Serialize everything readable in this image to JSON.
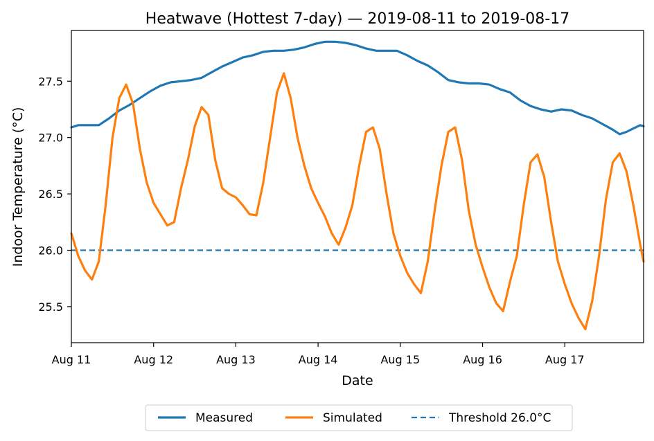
{
  "chart_data": {
    "type": "line",
    "title": "Heatwave (Hottest 7-day) — 2019-08-11 to 2019-08-17",
    "xlabel": "Date",
    "ylabel": "Indoor Temperature (°C)",
    "xlim": [
      "2019-08-11 00:00",
      "2019-08-17 23:00"
    ],
    "ylim": [
      25.18,
      27.95
    ],
    "x_ticks": [
      {
        "value": "2019-08-11",
        "label": "Aug 11"
      },
      {
        "value": "2019-08-12",
        "label": "Aug 12"
      },
      {
        "value": "2019-08-13",
        "label": "Aug 13"
      },
      {
        "value": "2019-08-14",
        "label": "Aug 14"
      },
      {
        "value": "2019-08-15",
        "label": "Aug 15"
      },
      {
        "value": "2019-08-16",
        "label": "Aug 16"
      },
      {
        "value": "2019-08-17",
        "label": "Aug 17"
      }
    ],
    "y_ticks": [
      {
        "value": 25.5,
        "label": "25.5"
      },
      {
        "value": 26.0,
        "label": "26.0"
      },
      {
        "value": 26.5,
        "label": "26.5"
      },
      {
        "value": 27.0,
        "label": "27.0"
      },
      {
        "value": 27.5,
        "label": "27.5"
      }
    ],
    "grid": false,
    "legend_position": "bottom-center",
    "series": [
      {
        "name": "Measured",
        "color": "#1f77b4",
        "style": "solid",
        "points": [
          [
            "2019-08-11 00:00",
            27.09
          ],
          [
            "2019-08-11 02:00",
            27.11
          ],
          [
            "2019-08-11 05:00",
            27.11
          ],
          [
            "2019-08-11 08:00",
            27.11
          ],
          [
            "2019-08-11 11:00",
            27.17
          ],
          [
            "2019-08-11 14:00",
            27.24
          ],
          [
            "2019-08-11 17:00",
            27.29
          ],
          [
            "2019-08-11 20:00",
            27.35
          ],
          [
            "2019-08-11 23:00",
            27.41
          ],
          [
            "2019-08-12 02:00",
            27.46
          ],
          [
            "2019-08-12 05:00",
            27.49
          ],
          [
            "2019-08-12 08:00",
            27.5
          ],
          [
            "2019-08-12 11:00",
            27.51
          ],
          [
            "2019-08-12 14:00",
            27.53
          ],
          [
            "2019-08-12 17:00",
            27.58
          ],
          [
            "2019-08-12 20:00",
            27.63
          ],
          [
            "2019-08-12 23:00",
            27.67
          ],
          [
            "2019-08-13 02:00",
            27.71
          ],
          [
            "2019-08-13 05:00",
            27.73
          ],
          [
            "2019-08-13 08:00",
            27.76
          ],
          [
            "2019-08-13 11:00",
            27.77
          ],
          [
            "2019-08-13 14:00",
            27.77
          ],
          [
            "2019-08-13 17:00",
            27.78
          ],
          [
            "2019-08-13 20:00",
            27.8
          ],
          [
            "2019-08-13 23:00",
            27.83
          ],
          [
            "2019-08-14 02:00",
            27.85
          ],
          [
            "2019-08-14 05:00",
            27.85
          ],
          [
            "2019-08-14 08:00",
            27.84
          ],
          [
            "2019-08-14 11:00",
            27.82
          ],
          [
            "2019-08-14 14:00",
            27.79
          ],
          [
            "2019-08-14 17:00",
            27.77
          ],
          [
            "2019-08-14 20:00",
            27.77
          ],
          [
            "2019-08-14 23:00",
            27.77
          ],
          [
            "2019-08-15 02:00",
            27.73
          ],
          [
            "2019-08-15 05:00",
            27.68
          ],
          [
            "2019-08-15 08:00",
            27.64
          ],
          [
            "2019-08-15 11:00",
            27.58
          ],
          [
            "2019-08-15 14:00",
            27.51
          ],
          [
            "2019-08-15 17:00",
            27.49
          ],
          [
            "2019-08-15 20:00",
            27.48
          ],
          [
            "2019-08-15 23:00",
            27.48
          ],
          [
            "2019-08-16 02:00",
            27.47
          ],
          [
            "2019-08-16 05:00",
            27.43
          ],
          [
            "2019-08-16 08:00",
            27.4
          ],
          [
            "2019-08-16 11:00",
            27.33
          ],
          [
            "2019-08-16 14:00",
            27.28
          ],
          [
            "2019-08-16 17:00",
            27.25
          ],
          [
            "2019-08-16 20:00",
            27.23
          ],
          [
            "2019-08-16 23:00",
            27.25
          ],
          [
            "2019-08-17 02:00",
            27.24
          ],
          [
            "2019-08-17 05:00",
            27.2
          ],
          [
            "2019-08-17 08:00",
            27.17
          ],
          [
            "2019-08-17 11:00",
            27.12
          ],
          [
            "2019-08-17 14:00",
            27.07
          ],
          [
            "2019-08-17 16:00",
            27.03
          ],
          [
            "2019-08-17 18:00",
            27.05
          ],
          [
            "2019-08-17 20:00",
            27.08
          ],
          [
            "2019-08-17 22:00",
            27.11
          ],
          [
            "2019-08-17 23:00",
            27.1
          ]
        ]
      },
      {
        "name": "Simulated",
        "color": "#ff7f0e",
        "style": "solid",
        "points": [
          [
            "2019-08-11 00:00",
            26.15
          ],
          [
            "2019-08-11 02:00",
            25.95
          ],
          [
            "2019-08-11 04:00",
            25.82
          ],
          [
            "2019-08-11 06:00",
            25.74
          ],
          [
            "2019-08-11 08:00",
            25.9
          ],
          [
            "2019-08-11 10:00",
            26.4
          ],
          [
            "2019-08-11 12:00",
            27.0
          ],
          [
            "2019-08-11 14:00",
            27.35
          ],
          [
            "2019-08-11 16:00",
            27.47
          ],
          [
            "2019-08-11 18:00",
            27.3
          ],
          [
            "2019-08-11 20:00",
            26.9
          ],
          [
            "2019-08-11 22:00",
            26.6
          ],
          [
            "2019-08-12 00:00",
            26.42
          ],
          [
            "2019-08-12 02:00",
            26.32
          ],
          [
            "2019-08-12 04:00",
            26.22
          ],
          [
            "2019-08-12 06:00",
            26.25
          ],
          [
            "2019-08-12 08:00",
            26.55
          ],
          [
            "2019-08-12 10:00",
            26.8
          ],
          [
            "2019-08-12 12:00",
            27.1
          ],
          [
            "2019-08-12 14:00",
            27.27
          ],
          [
            "2019-08-12 16:00",
            27.2
          ],
          [
            "2019-08-12 18:00",
            26.8
          ],
          [
            "2019-08-12 20:00",
            26.55
          ],
          [
            "2019-08-12 22:00",
            26.5
          ],
          [
            "2019-08-13 00:00",
            26.47
          ],
          [
            "2019-08-13 02:00",
            26.4
          ],
          [
            "2019-08-13 04:00",
            26.32
          ],
          [
            "2019-08-13 06:00",
            26.31
          ],
          [
            "2019-08-13 08:00",
            26.6
          ],
          [
            "2019-08-13 10:00",
            27.0
          ],
          [
            "2019-08-13 12:00",
            27.4
          ],
          [
            "2019-08-13 14:00",
            27.57
          ],
          [
            "2019-08-13 16:00",
            27.35
          ],
          [
            "2019-08-13 18:00",
            27.0
          ],
          [
            "2019-08-13 20:00",
            26.75
          ],
          [
            "2019-08-13 22:00",
            26.55
          ],
          [
            "2019-08-14 00:00",
            26.42
          ],
          [
            "2019-08-14 02:00",
            26.3
          ],
          [
            "2019-08-14 04:00",
            26.15
          ],
          [
            "2019-08-14 06:00",
            26.05
          ],
          [
            "2019-08-14 08:00",
            26.2
          ],
          [
            "2019-08-14 10:00",
            26.4
          ],
          [
            "2019-08-14 12:00",
            26.75
          ],
          [
            "2019-08-14 14:00",
            27.05
          ],
          [
            "2019-08-14 16:00",
            27.09
          ],
          [
            "2019-08-14 18:00",
            26.9
          ],
          [
            "2019-08-14 20:00",
            26.5
          ],
          [
            "2019-08-14 22:00",
            26.15
          ],
          [
            "2019-08-15 00:00",
            25.95
          ],
          [
            "2019-08-15 02:00",
            25.8
          ],
          [
            "2019-08-15 04:00",
            25.7
          ],
          [
            "2019-08-15 06:00",
            25.62
          ],
          [
            "2019-08-15 08:00",
            25.9
          ],
          [
            "2019-08-15 10:00",
            26.35
          ],
          [
            "2019-08-15 12:00",
            26.75
          ],
          [
            "2019-08-15 14:00",
            27.05
          ],
          [
            "2019-08-15 16:00",
            27.09
          ],
          [
            "2019-08-15 18:00",
            26.8
          ],
          [
            "2019-08-15 20:00",
            26.35
          ],
          [
            "2019-08-15 22:00",
            26.05
          ],
          [
            "2019-08-16 00:00",
            25.85
          ],
          [
            "2019-08-16 02:00",
            25.67
          ],
          [
            "2019-08-16 04:00",
            25.53
          ],
          [
            "2019-08-16 06:00",
            25.46
          ],
          [
            "2019-08-16 08:00",
            25.72
          ],
          [
            "2019-08-16 10:00",
            25.95
          ],
          [
            "2019-08-16 12:00",
            26.4
          ],
          [
            "2019-08-16 14:00",
            26.78
          ],
          [
            "2019-08-16 16:00",
            26.85
          ],
          [
            "2019-08-16 18:00",
            26.65
          ],
          [
            "2019-08-16 20:00",
            26.25
          ],
          [
            "2019-08-16 22:00",
            25.9
          ],
          [
            "2019-08-17 00:00",
            25.7
          ],
          [
            "2019-08-17 02:00",
            25.53
          ],
          [
            "2019-08-17 04:00",
            25.4
          ],
          [
            "2019-08-17 06:00",
            25.3
          ],
          [
            "2019-08-17 08:00",
            25.55
          ],
          [
            "2019-08-17 10:00",
            25.95
          ],
          [
            "2019-08-17 12:00",
            26.45
          ],
          [
            "2019-08-17 14:00",
            26.78
          ],
          [
            "2019-08-17 16:00",
            26.86
          ],
          [
            "2019-08-17 18:00",
            26.7
          ],
          [
            "2019-08-17 20:00",
            26.4
          ],
          [
            "2019-08-17 22:00",
            26.05
          ],
          [
            "2019-08-17 23:00",
            25.9
          ]
        ]
      },
      {
        "name": "Threshold 26.0°C",
        "color": "#1f77b4",
        "style": "dashed",
        "points": [
          [
            "2019-08-11 00:00",
            26.0
          ],
          [
            "2019-08-17 23:00",
            26.0
          ]
        ]
      }
    ]
  }
}
